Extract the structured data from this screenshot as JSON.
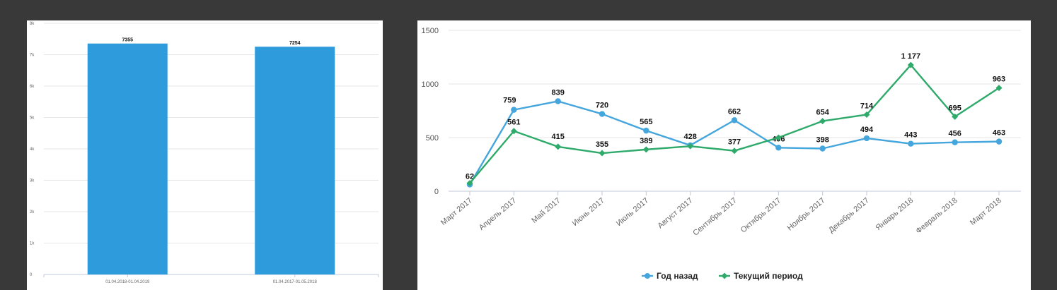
{
  "chart_data": [
    {
      "type": "bar",
      "title": "",
      "categories": [
        "01.04.2018-01.04.2019",
        "01.04.2017-01.05.2018"
      ],
      "values": [
        7355,
        7254
      ],
      "data_labels": [
        "7355",
        "7254"
      ],
      "ylim": [
        0,
        8000
      ],
      "y_ticks": [
        0,
        1000,
        2000,
        3000,
        4000,
        5000,
        6000,
        7000,
        8000
      ],
      "y_tick_labels": [
        "0",
        "1k",
        "2k",
        "3k",
        "4k",
        "5k",
        "6k",
        "7k",
        "8k"
      ],
      "grid": true,
      "bar_color": "#2e9bdc"
    },
    {
      "type": "line",
      "title": "",
      "categories": [
        "Март 2017",
        "Апрель 2017",
        "Май 2017",
        "Июнь 2017",
        "Июль 2017",
        "Август 2017",
        "Сентябрь 2017",
        "Октябрь 2017",
        "Ноябрь 2017",
        "Декабрь 2017",
        "Январь 2018",
        "Февраль 2018",
        "Март 2018"
      ],
      "ylim": [
        0,
        1500
      ],
      "y_ticks": [
        0,
        500,
        1000,
        1500
      ],
      "y_tick_labels": [
        "0",
        "500",
        "1000",
        "1500"
      ],
      "grid": true,
      "legend_position": "bottom-center",
      "series": [
        {
          "name": "Год назад",
          "color": "#45a6dd",
          "values": [
            62,
            759,
            839,
            720,
            565,
            428,
            662,
            406,
            398,
            494,
            443,
            456,
            463
          ],
          "labels": [
            "62",
            "759",
            "839",
            "720",
            "565",
            "428",
            "662",
            "406",
            "398",
            "494",
            "443",
            "456",
            "463"
          ]
        },
        {
          "name": "Текущий период",
          "color": "#2eaa6a",
          "values": [
            75,
            561,
            415,
            355,
            389,
            420,
            377,
            500,
            654,
            714,
            1177,
            695,
            963
          ],
          "labels": [
            "",
            "561",
            "415",
            "355",
            "389",
            "",
            "377",
            "",
            "654",
            "714",
            "1 177",
            "695",
            "963"
          ]
        }
      ]
    }
  ]
}
